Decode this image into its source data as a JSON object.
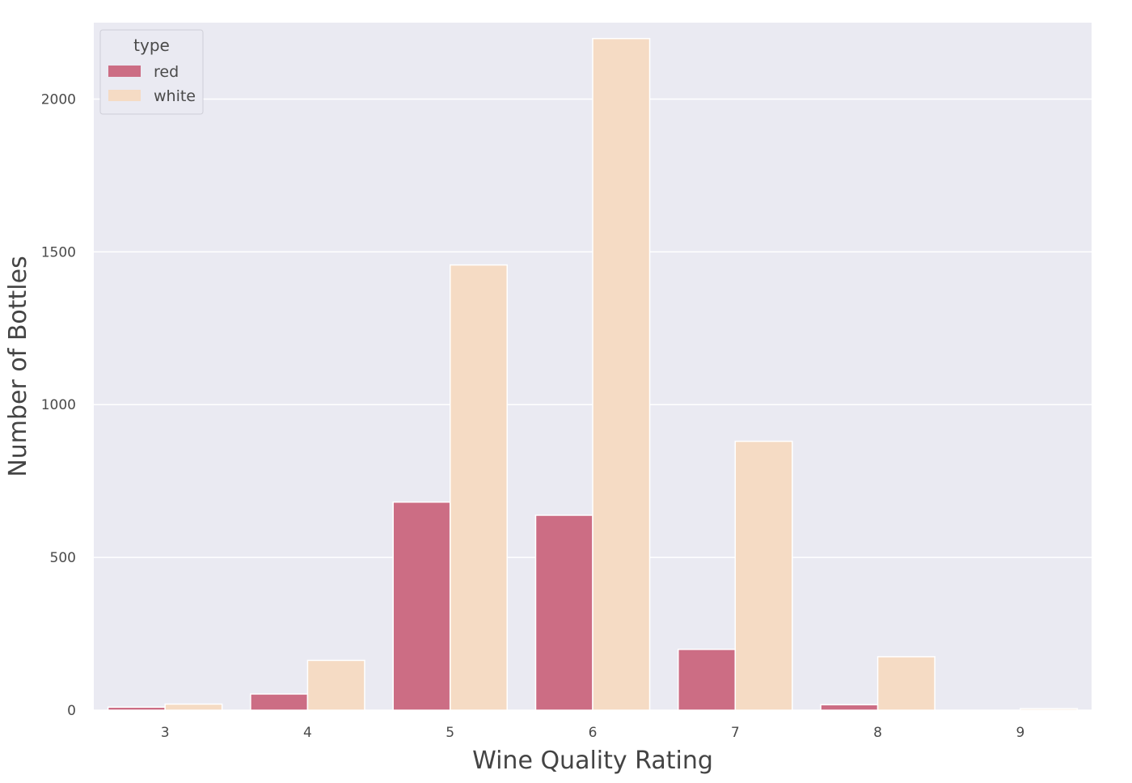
{
  "chart_data": {
    "type": "bar",
    "categories": [
      "3",
      "4",
      "5",
      "6",
      "7",
      "8",
      "9"
    ],
    "series": [
      {
        "name": "red",
        "color": "#cc6d84",
        "values": [
          10,
          53,
          681,
          638,
          199,
          18,
          0
        ]
      },
      {
        "name": "white",
        "color": "#f5dbc4",
        "values": [
          20,
          163,
          1457,
          2198,
          880,
          175,
          5
        ]
      }
    ],
    "xlabel": "Wine Quality Rating",
    "ylabel": "Number of Bottles",
    "ylim": [
      0,
      2250
    ],
    "yticks": [
      0,
      500,
      1000,
      1500,
      2000
    ],
    "grid": true,
    "legend": {
      "title": "type",
      "placement": "top-left"
    },
    "background_color": "#eaeaf2",
    "grid_color": "#ffffff"
  }
}
